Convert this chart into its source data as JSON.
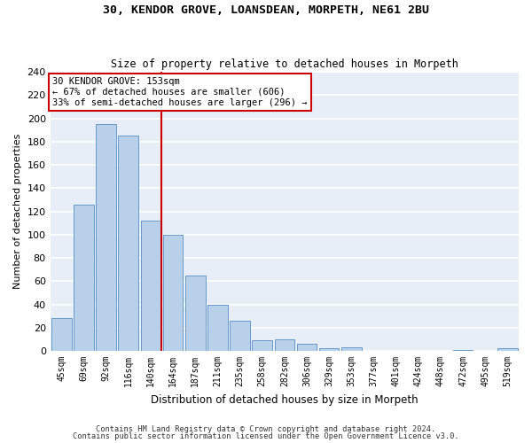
{
  "title1": "30, KENDOR GROVE, LOANSDEAN, MORPETH, NE61 2BU",
  "title2": "Size of property relative to detached houses in Morpeth",
  "xlabel": "Distribution of detached houses by size in Morpeth",
  "ylabel": "Number of detached properties",
  "footer1": "Contains HM Land Registry data © Crown copyright and database right 2024.",
  "footer2": "Contains public sector information licensed under the Open Government Licence v3.0.",
  "annotation_line1": "30 KENDOR GROVE: 153sqm",
  "annotation_line2": "← 67% of detached houses are smaller (606)",
  "annotation_line3": "33% of semi-detached houses are larger (296) →",
  "bar_labels": [
    "45sqm",
    "69sqm",
    "92sqm",
    "116sqm",
    "140sqm",
    "164sqm",
    "187sqm",
    "211sqm",
    "235sqm",
    "258sqm",
    "282sqm",
    "306sqm",
    "329sqm",
    "353sqm",
    "377sqm",
    "401sqm",
    "424sqm",
    "448sqm",
    "472sqm",
    "495sqm",
    "519sqm"
  ],
  "bar_values": [
    28,
    126,
    195,
    185,
    112,
    100,
    65,
    40,
    26,
    9,
    10,
    6,
    2,
    3,
    0,
    0,
    0,
    0,
    1,
    0,
    2
  ],
  "bar_color": "#b8d0ea",
  "bar_edge_color": "#6699cc",
  "vline_color": "#cc0000",
  "vline_x": 4.5,
  "background_color": "#e8eef8",
  "grid_color": "#ffffff",
  "annotation_box_color": "#ffffff",
  "annotation_box_edge": "#cc0000",
  "fig_background": "#ffffff",
  "ylim": [
    0,
    240
  ],
  "yticks": [
    0,
    20,
    40,
    60,
    80,
    100,
    120,
    140,
    160,
    180,
    200,
    220,
    240
  ]
}
